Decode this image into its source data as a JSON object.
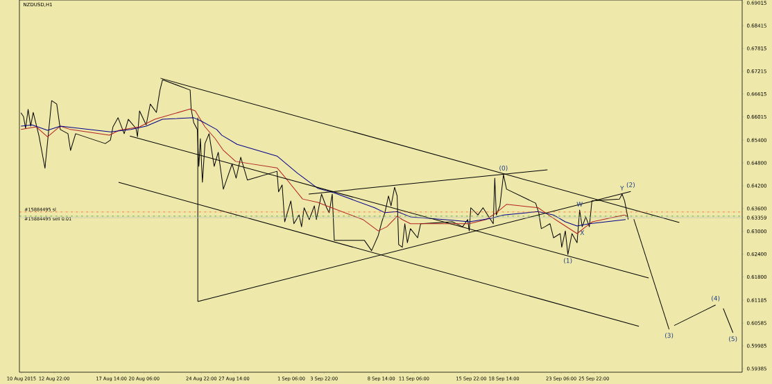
{
  "chart_data": {
    "type": "line",
    "title": "NZDUSD,H1",
    "xlim": [
      "2015-08-10T02:00",
      "2015-10-08T00:00"
    ],
    "ylim": [
      0.5929,
      0.6909
    ],
    "xticks": [
      {
        "value": "2015-08-10T06:00",
        "label": "10 Aug 2015"
      },
      {
        "value": "2015-08-12T22:00",
        "label": "12 Aug 22:00"
      },
      {
        "value": "2015-08-17T14:00",
        "label": "17 Aug 14:00"
      },
      {
        "value": "2015-08-20T06:00",
        "label": "20 Aug 06:00"
      },
      {
        "value": "2015-08-24T22:00",
        "label": "24 Aug 22:00"
      },
      {
        "value": "2015-08-27T14:00",
        "label": "27 Aug 14:00"
      },
      {
        "value": "2015-09-01T06:00",
        "label": "1 Sep 06:00"
      },
      {
        "value": "2015-09-03T22:00",
        "label": "3 Sep 22:00"
      },
      {
        "value": "2015-09-08T14:00",
        "label": "8 Sep 14:00"
      },
      {
        "value": "2015-09-11T06:00",
        "label": "11 Sep 06:00"
      },
      {
        "value": "2015-09-15T22:00",
        "label": "15 Sep 22:00"
      },
      {
        "value": "2015-09-18T14:00",
        "label": "18 Sep 14:00"
      },
      {
        "value": "2015-09-23T06:00",
        "label": "23 Sep 06:00"
      },
      {
        "value": "2015-09-25T22:00",
        "label": "25 Sep 22:00"
      }
    ],
    "yticks": [
      0.69015,
      0.68415,
      0.67815,
      0.67215,
      0.66615,
      0.66015,
      {
        "value": 0.654,
        "label": "0.65400"
      },
      {
        "value": 0.648,
        "label": "0.64800"
      },
      {
        "value": 0.642,
        "label": "0.64200"
      },
      {
        "value": 0.636,
        "label": "0.63600"
      },
      {
        "value": 0.63359,
        "label": "0.63359"
      },
      {
        "value": 0.63,
        "label": "0.63000"
      },
      {
        "value": 0.624,
        "label": "0.62400"
      },
      {
        "value": 0.618,
        "label": "0.61800"
      },
      0.61185,
      0.60585,
      0.59985,
      0.59385
    ],
    "series": [
      {
        "color": "#000000",
        "x": [
          "2015-08-10T05:00",
          "2015-08-10T10:00",
          "2015-08-10T14:00",
          "2015-08-10T19:00",
          "2015-08-11T00:00",
          "2015-08-11T05:00",
          "2015-08-11T16:00",
          "2015-08-12T04:00",
          "2015-08-12T17:00",
          "2015-08-13T03:00",
          "2015-08-13T10:00",
          "2015-08-14T01:00",
          "2015-08-14T06:00",
          "2015-08-14T16:00",
          "2015-08-17T02:00",
          "2015-08-17T12:00",
          "2015-08-17T17:00",
          "2015-08-18T03:00",
          "2015-08-18T15:00",
          "2015-08-18T23:00",
          "2015-08-19T14:00",
          "2015-08-19T17:00",
          "2015-08-19T21:00",
          "2015-08-20T10:00",
          "2015-08-20T18:00",
          "2015-08-21T06:00",
          "2015-08-21T13:00",
          "2015-08-21T18:00",
          "2015-08-24T00:00",
          "2015-08-24T02:00",
          "2015-08-24T07:00",
          "2015-08-24T14:00",
          "2015-08-24T17:00",
          "2015-08-24T20:00",
          "2015-08-25T00:00",
          "2015-08-25T05:00",
          "2015-08-25T13:00",
          "2015-08-25T23:00",
          "2015-08-26T07:00",
          "2015-08-26T17:00",
          "2015-08-27T10:00",
          "2015-08-27T18:00",
          "2015-08-28T03:00",
          "2015-08-28T16:00",
          "2015-08-31T02:00",
          "2015-08-31T05:00",
          "2015-08-31T12:00",
          "2015-08-31T17:00",
          "2015-09-01T05:00",
          "2015-09-01T11:00",
          "2015-09-01T21:00",
          "2015-09-02T02:00",
          "2015-09-02T07:00",
          "2015-09-02T17:00",
          "2015-09-03T03:00",
          "2015-09-03T07:00",
          "2015-09-03T17:00",
          "2015-09-04T03:00",
          "2015-09-04T08:00",
          "2015-09-04T14:00",
          "2015-09-04T18:00",
          "2015-09-07T05:00",
          "2015-09-07T19:00",
          "2015-09-08T08:00",
          "2015-09-08T15:00",
          "2015-09-08T21:00",
          "2015-09-09T04:00",
          "2015-09-09T09:00",
          "2015-09-09T16:00",
          "2015-09-09T21:00",
          "2015-09-10T00:00",
          "2015-09-10T07:00",
          "2015-09-10T12:00",
          "2015-09-10T17:00",
          "2015-09-10T23:00",
          "2015-09-11T13:00",
          "2015-09-11T19:00",
          "2015-09-14T09:00",
          "2015-09-15T05:00",
          "2015-09-15T15:00",
          "2015-09-15T18:00",
          "2015-09-15T21:00",
          "2015-09-16T11:00",
          "2015-09-16T21:00",
          "2015-09-17T03:00",
          "2015-09-17T17:00",
          "2015-09-17T20:00",
          "2015-09-17T23:00",
          "2015-09-18T06:00",
          "2015-09-18T13:00",
          "2015-09-18T19:00",
          "2015-09-21T04:00",
          "2015-09-21T10:00",
          "2015-09-21T15:00",
          "2015-09-21T22:00",
          "2015-09-22T08:00",
          "2015-09-22T15:00",
          "2015-09-23T04:00",
          "2015-09-23T07:00",
          "2015-09-23T14:00",
          "2015-09-23T19:00",
          "2015-09-24T03:00",
          "2015-09-24T13:00",
          "2015-09-24T18:00",
          "2015-09-24T23:00",
          "2015-09-25T06:00",
          "2015-09-25T13:00",
          "2015-09-25T18:00",
          "2015-09-28T00:00",
          "2015-09-28T05:00",
          "2015-09-28T10:00",
          "2015-09-28T17:00"
        ],
        "values": [
          0.6612,
          0.6602,
          0.6571,
          0.6621,
          0.6577,
          0.6613,
          0.6553,
          0.6466,
          0.6644,
          0.6635,
          0.6568,
          0.6557,
          0.6513,
          0.6557,
          0.6531,
          0.654,
          0.6575,
          0.6599,
          0.6557,
          0.6595,
          0.6571,
          0.6549,
          0.6617,
          0.658,
          0.6635,
          0.6613,
          0.6672,
          0.6699,
          0.6672,
          0.6622,
          0.6586,
          0.6568,
          0.6471,
          0.6544,
          0.6429,
          0.6531,
          0.6557,
          0.6471,
          0.6508,
          0.6411,
          0.6477,
          0.644,
          0.6495,
          0.6435,
          0.6458,
          0.6404,
          0.6422,
          0.6325,
          0.638,
          0.632,
          0.6343,
          0.6312,
          0.6362,
          0.6331,
          0.6367,
          0.6331,
          0.6398,
          0.6362,
          0.6349,
          0.6398,
          0.6276,
          0.6276,
          0.6249,
          0.6289,
          0.6325,
          0.6349,
          0.6393,
          0.6367,
          0.6416,
          0.6393,
          0.6265,
          0.6258,
          0.632,
          0.627,
          0.6307,
          0.6283,
          0.632,
          0.6325,
          0.6312,
          0.6331,
          0.6301,
          0.6362,
          0.6343,
          0.6362,
          0.6349,
          0.632,
          0.644,
          0.6343,
          0.6367,
          0.6449,
          0.6411,
          0.6374,
          0.6349,
          0.6307,
          0.6312,
          0.632,
          0.6283,
          0.6294,
          0.6258,
          0.6301,
          0.6239,
          0.6294,
          0.627,
          0.6356,
          0.6312,
          0.6338,
          0.6312,
          0.638,
          0.6385,
          0.6398,
          0.638,
          0.6331
        ]
      },
      {
        "color": "#b22222",
        "x": [
          "2015-08-10T05:00",
          "2015-08-11T11:00",
          "2015-08-12T09:00",
          "2015-08-13T10:00",
          "2015-08-14T06:00",
          "2015-08-17T10:00",
          "2015-08-18T05:00",
          "2015-08-19T21:00",
          "2015-08-21T03:00",
          "2015-08-24T00:00",
          "2015-08-24T10:00",
          "2015-08-25T05:00",
          "2015-08-26T01:00",
          "2015-08-26T17:00",
          "2015-08-27T17:00",
          "2015-08-31T02:00",
          "2015-08-31T19:00",
          "2015-09-02T04:00",
          "2015-09-03T10:00",
          "2015-09-04T03:00",
          "2015-09-07T02:00",
          "2015-09-08T08:00",
          "2015-09-09T01:00",
          "2015-09-09T21:00",
          "2015-09-10T07:00",
          "2015-09-10T23:00",
          "2015-09-14T09:00",
          "2015-09-15T18:00",
          "2015-09-17T03:00",
          "2015-09-17T23:00",
          "2015-09-18T19:00",
          "2015-09-21T09:00",
          "2015-09-22T05:00",
          "2015-09-23T07:00",
          "2015-09-24T13:00",
          "2015-09-25T06:00",
          "2015-09-25T19:00",
          "2015-09-28T09:00",
          "2015-09-28T15:00"
        ],
        "values": [
          0.6568,
          0.6575,
          0.6549,
          0.6577,
          0.6568,
          0.6553,
          0.6566,
          0.6575,
          0.6595,
          0.6622,
          0.6617,
          0.6575,
          0.6544,
          0.6513,
          0.6484,
          0.6467,
          0.644,
          0.6385,
          0.6376,
          0.6367,
          0.6331,
          0.6301,
          0.6312,
          0.634,
          0.6331,
          0.632,
          0.632,
          0.632,
          0.6331,
          0.6349,
          0.6371,
          0.6362,
          0.6343,
          0.632,
          0.6294,
          0.6312,
          0.6325,
          0.6343,
          0.634
        ]
      },
      {
        "color": "#00008b",
        "x": [
          "2015-08-10T05:00",
          "2015-08-11T03:00",
          "2015-08-12T09:00",
          "2015-08-13T10:00",
          "2015-08-17T12:00",
          "2015-08-19T04:00",
          "2015-08-20T10:00",
          "2015-08-21T18:00",
          "2015-08-24T07:00",
          "2015-08-24T22:00",
          "2015-08-26T04:00",
          "2015-08-26T14:00",
          "2015-08-27T20:00",
          "2015-08-31T02:00",
          "2015-09-01T18:00",
          "2015-09-03T10:00",
          "2015-09-04T16:00",
          "2015-09-08T01:00",
          "2015-09-08T21:00",
          "2015-09-09T21:00",
          "2015-09-10T23:00",
          "2015-09-14T09:00",
          "2015-09-15T18:00",
          "2015-09-17T13:00",
          "2015-09-18T13:00",
          "2015-09-21T09:00",
          "2015-09-22T15:00",
          "2015-09-23T14:00",
          "2015-09-24T13:00",
          "2015-09-25T13:00",
          "2015-09-28T12:00"
        ],
        "values": [
          0.6577,
          0.658,
          0.6566,
          0.6577,
          0.6562,
          0.6568,
          0.6577,
          0.6595,
          0.6599,
          0.659,
          0.6568,
          0.6553,
          0.6529,
          0.6498,
          0.6453,
          0.6413,
          0.6402,
          0.6362,
          0.6349,
          0.6352,
          0.6338,
          0.6329,
          0.6325,
          0.6334,
          0.6343,
          0.6352,
          0.6343,
          0.6325,
          0.6314,
          0.632,
          0.6331
        ]
      },
      {
        "color": "#000000",
        "x": [
          "2015-08-21T14:00",
          "2015-10-02T21:00"
        ],
        "values": [
          0.6703,
          0.6323
        ]
      },
      {
        "color": "#000000",
        "x": [
          "2015-08-19T02:00",
          "2015-09-30T09:00"
        ],
        "values": [
          0.6551,
          0.6177
        ]
      },
      {
        "color": "#000000",
        "x": [
          "2015-08-18T04:00",
          "2015-09-29T14:00"
        ],
        "values": [
          0.6429,
          0.605
        ]
      },
      {
        "color": "#000000",
        "x": [
          "2015-08-24T15:00",
          "2015-08-24T15:00"
        ],
        "values": [
          0.6599,
          0.6115
        ]
      },
      {
        "color": "#000000",
        "x": [
          "2015-08-24T15:00",
          "2015-09-28T22:00"
        ],
        "values": [
          0.6115,
          0.6405
        ]
      },
      {
        "color": "#000000",
        "x": [
          "2015-09-02T16:00",
          "2015-09-22T03:00"
        ],
        "values": [
          0.6398,
          0.6462
        ]
      },
      {
        "color": "#000000",
        "x": [
          "2015-09-29T04:00",
          "2015-10-02T01:00"
        ],
        "values": [
          0.6332,
          0.6042
        ]
      },
      {
        "color": "#000000",
        "x": [
          "2015-10-02T11:00",
          "2015-10-05T20:00"
        ],
        "values": [
          0.6052,
          0.6106
        ]
      },
      {
        "color": "#000000",
        "x": [
          "2015-10-06T11:00",
          "2015-10-07T06:00"
        ],
        "values": [
          0.6097,
          0.6033
        ]
      }
    ],
    "ref_lines": [
      {
        "axis": "y",
        "value": 0.6351,
        "label": "#15884495 sl",
        "color": "#ff4500",
        "line_style": "dashed"
      },
      {
        "axis": "y",
        "value": 0.634,
        "label": "#15884495 sell 0.01",
        "color": "#228b22",
        "line_style": "dashed"
      },
      {
        "axis": "y",
        "value": 0.63359,
        "color": "#c0c0c0"
      }
    ],
    "annotations": [
      {
        "text": "(0)",
        "x": "2015-09-18T13:00",
        "y": 0.6449
      },
      {
        "text": "(1)",
        "x": "2015-09-23T19:00",
        "y": 0.6239
      },
      {
        "text": "(2)",
        "x": "2015-09-28T22:00",
        "y": 0.6405
      },
      {
        "text": "(3)",
        "x": "2015-10-02T01:00",
        "y": 0.6042
      },
      {
        "text": "(4)",
        "x": "2015-10-05T20:00",
        "y": 0.6106
      },
      {
        "text": "(5)",
        "x": "2015-10-07T06:00",
        "y": 0.6033
      },
      {
        "text": "W",
        "x": "2015-09-24T18:00",
        "y": 0.6356
      },
      {
        "text": "X",
        "x": "2015-09-24T23:00",
        "y": 0.6312
      },
      {
        "text": "Y",
        "x": "2015-09-28T05:00",
        "y": 0.6398
      }
    ]
  }
}
